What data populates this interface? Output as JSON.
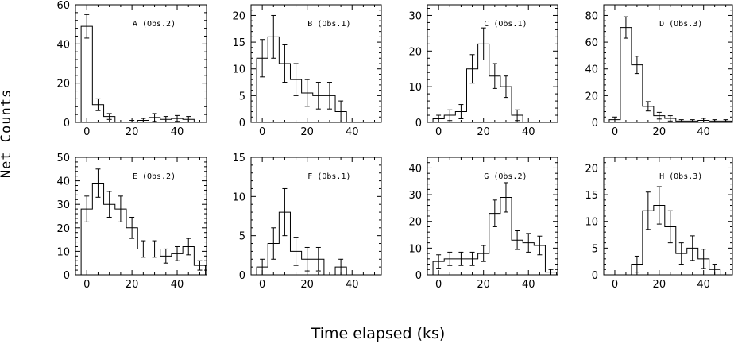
{
  "figure": {
    "ylabel": "Net Counts",
    "xlabel": "Time elapsed (ks)"
  },
  "chart_data": [
    {
      "type": "histogram",
      "label": "A (Obs.2)",
      "xlim": [
        -5,
        53
      ],
      "ylim": [
        0,
        60
      ],
      "xticks": [
        0,
        20,
        40
      ],
      "yticks": [
        0,
        20,
        40,
        60
      ],
      "bins": [
        [
          0,
          49,
          6
        ],
        [
          5,
          9,
          3
        ],
        [
          10,
          3,
          1.5
        ],
        [
          15,
          0,
          0
        ],
        [
          20,
          0,
          1
        ],
        [
          25,
          1,
          1
        ],
        [
          30,
          2.5,
          2
        ],
        [
          35,
          1.5,
          1.5
        ],
        [
          40,
          2,
          1.5
        ],
        [
          45,
          1.5,
          1.5
        ]
      ]
    },
    {
      "type": "histogram",
      "label": "B (Obs.1)",
      "xlim": [
        -5,
        53
      ],
      "ylim": [
        0,
        22
      ],
      "xticks": [
        0,
        20,
        40
      ],
      "yticks": [
        0,
        5,
        10,
        15,
        20
      ],
      "bins": [
        [
          0,
          12,
          3.5
        ],
        [
          5,
          16,
          4
        ],
        [
          10,
          11,
          3.5
        ],
        [
          15,
          8,
          3
        ],
        [
          20,
          5.5,
          2.5
        ],
        [
          25,
          5,
          2.5
        ],
        [
          30,
          5,
          2.5
        ],
        [
          35,
          2,
          2
        ]
      ]
    },
    {
      "type": "histogram",
      "label": "C (Obs.1)",
      "xlim": [
        -5,
        53
      ],
      "ylim": [
        0,
        33
      ],
      "xticks": [
        0,
        20,
        40
      ],
      "yticks": [
        0,
        10,
        20,
        30
      ],
      "bins": [
        [
          0,
          1,
          1
        ],
        [
          5,
          2,
          1.5
        ],
        [
          10,
          3,
          2
        ],
        [
          15,
          15,
          4
        ],
        [
          20,
          22,
          4.5
        ],
        [
          25,
          13,
          3.5
        ],
        [
          30,
          10,
          3
        ],
        [
          35,
          2,
          1.5
        ]
      ]
    },
    {
      "type": "histogram",
      "label": "D (Obs.3)",
      "xlim": [
        -5,
        53
      ],
      "ylim": [
        0,
        88
      ],
      "xticks": [
        0,
        20,
        40
      ],
      "yticks": [
        0,
        20,
        40,
        60,
        80
      ],
      "bins": [
        [
          0,
          2,
          2
        ],
        [
          5,
          71,
          8
        ],
        [
          10,
          43,
          6.5
        ],
        [
          15,
          12,
          3.5
        ],
        [
          20,
          5,
          2.5
        ],
        [
          25,
          3,
          2
        ],
        [
          30,
          1,
          1
        ],
        [
          35,
          1,
          1
        ],
        [
          40,
          1.5,
          1.5
        ],
        [
          45,
          1,
          1
        ],
        [
          50,
          1,
          1
        ]
      ]
    },
    {
      "type": "histogram",
      "label": "E (Obs.2)",
      "xlim": [
        -5,
        53
      ],
      "ylim": [
        0,
        50
      ],
      "xticks": [
        0,
        20,
        40
      ],
      "yticks": [
        0,
        10,
        20,
        30,
        40,
        50
      ],
      "bins": [
        [
          0,
          28,
          5.5
        ],
        [
          5,
          39,
          6
        ],
        [
          10,
          30,
          5.5
        ],
        [
          15,
          28,
          5.5
        ],
        [
          20,
          20,
          4.5
        ],
        [
          25,
          11,
          3.5
        ],
        [
          30,
          11,
          3.5
        ],
        [
          35,
          8,
          3
        ],
        [
          40,
          9,
          3
        ],
        [
          45,
          12,
          3.5
        ],
        [
          50,
          4,
          2
        ]
      ]
    },
    {
      "type": "histogram",
      "label": "F (Obs.1)",
      "xlim": [
        -5,
        53
      ],
      "ylim": [
        0,
        15
      ],
      "xticks": [
        0,
        20,
        40
      ],
      "yticks": [
        0,
        5,
        10,
        15
      ],
      "bins": [
        [
          0,
          1,
          1
        ],
        [
          5,
          4,
          2
        ],
        [
          10,
          8,
          3
        ],
        [
          15,
          3,
          1.8
        ],
        [
          20,
          2,
          1.5
        ],
        [
          25,
          2,
          1.5
        ],
        [
          30,
          0,
          0
        ],
        [
          35,
          1,
          1
        ]
      ]
    },
    {
      "type": "histogram",
      "label": "G (Obs.2)",
      "xlim": [
        -5,
        53
      ],
      "ylim": [
        0,
        44
      ],
      "xticks": [
        0,
        20,
        40
      ],
      "yticks": [
        0,
        10,
        20,
        30,
        40
      ],
      "bins": [
        [
          0,
          5,
          2.5
        ],
        [
          5,
          6,
          2.5
        ],
        [
          10,
          6,
          2.5
        ],
        [
          15,
          6,
          2.5
        ],
        [
          20,
          8,
          3
        ],
        [
          25,
          23,
          5
        ],
        [
          30,
          29,
          5.5
        ],
        [
          35,
          13,
          3.5
        ],
        [
          40,
          12,
          3.5
        ],
        [
          45,
          11,
          3.5
        ],
        [
          50,
          1,
          1
        ]
      ]
    },
    {
      "type": "histogram",
      "label": "H (Obs.3)",
      "xlim": [
        -5,
        53
      ],
      "ylim": [
        0,
        22
      ],
      "xticks": [
        0,
        20,
        40
      ],
      "yticks": [
        0,
        5,
        10,
        15,
        20
      ],
      "bins": [
        [
          0,
          0,
          0
        ],
        [
          5,
          0,
          0
        ],
        [
          10,
          2,
          1.5
        ],
        [
          15,
          12,
          3.5
        ],
        [
          20,
          13,
          3.5
        ],
        [
          25,
          9,
          3
        ],
        [
          30,
          4,
          2
        ],
        [
          35,
          5,
          2.3
        ],
        [
          40,
          3,
          1.8
        ],
        [
          45,
          1,
          1
        ]
      ]
    }
  ]
}
